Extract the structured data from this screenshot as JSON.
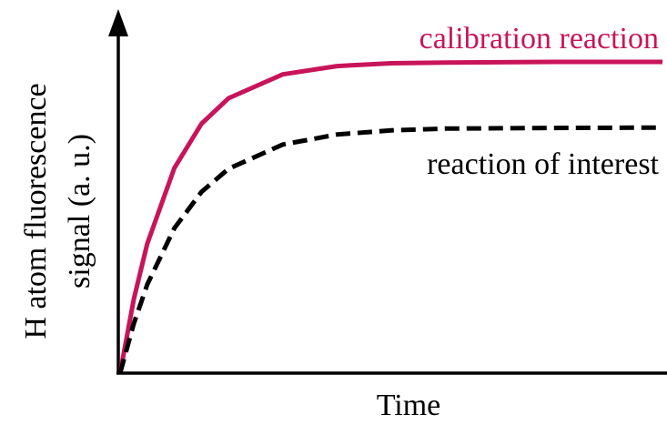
{
  "chart_data": {
    "type": "line",
    "xlabel": "Time",
    "ylabel": [
      "H atom fluorescence",
      "signal (a. u.)"
    ],
    "x": [
      0,
      0.25,
      0.5,
      1,
      1.5,
      2,
      3,
      4,
      5,
      6,
      8,
      10
    ],
    "xlim": [
      0,
      10
    ],
    "ylim": [
      0,
      1
    ],
    "series": [
      {
        "name": "calibration reaction",
        "color": "#c8145a",
        "dashed": false,
        "values": [
          0,
          0.212,
          0.374,
          0.593,
          0.721,
          0.795,
          0.864,
          0.888,
          0.896,
          0.898,
          0.9,
          0.9
        ]
      },
      {
        "name": "reaction of interest",
        "color": "#000000",
        "dashed": true,
        "values": [
          0,
          0.142,
          0.256,
          0.419,
          0.524,
          0.591,
          0.661,
          0.69,
          0.702,
          0.707,
          0.709,
          0.71
        ]
      }
    ]
  }
}
